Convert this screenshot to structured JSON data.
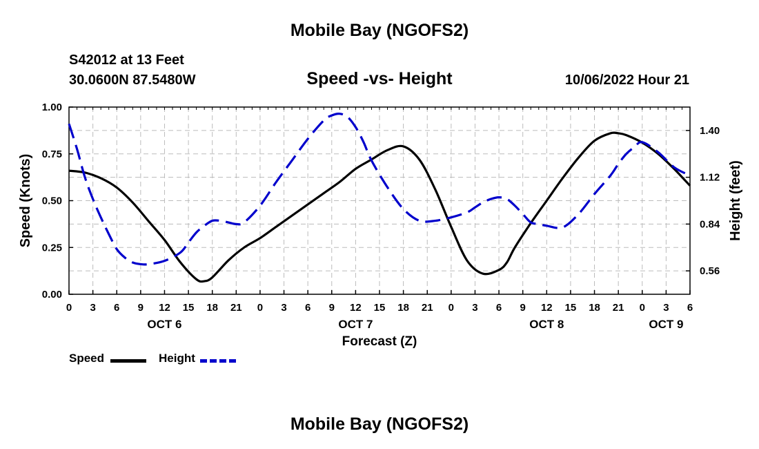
{
  "header": {
    "title": "Mobile Bay (NGOFS2)",
    "station": "S42012 at 13 Feet",
    "position": "30.0600N  87.5480W",
    "subtitle": "Speed -vs- Height",
    "datetime": "10/06/2022 Hour 21"
  },
  "footer": {
    "title": "Mobile Bay (NGOFS2)"
  },
  "legend": {
    "speed_label": "Speed",
    "height_label": "Height"
  },
  "colors": {
    "speed": "#000000",
    "height": "#0000cc",
    "grid": "#bbbbbb"
  },
  "chart_data": {
    "type": "line",
    "title": "Speed -vs- Height",
    "xlabel": "Forecast (Z)",
    "ylabel": "Speed (Knots)",
    "y2label": "Height (feet)",
    "x_range_hours": [
      0,
      78
    ],
    "x_tick_step_hours": 3,
    "x_tick_labels": [
      "0",
      "3",
      "6",
      "9",
      "12",
      "15",
      "18",
      "21",
      "0",
      "3",
      "6",
      "9",
      "12",
      "15",
      "18",
      "21",
      "0",
      "3",
      "6",
      "9",
      "12",
      "15",
      "18",
      "21",
      "0",
      "3",
      "6"
    ],
    "day_labels": [
      {
        "label": "OCT 6",
        "hour": 12
      },
      {
        "label": "OCT 7",
        "hour": 36
      },
      {
        "label": "OCT 8",
        "hour": 60
      },
      {
        "label": "OCT 9",
        "hour": 75
      }
    ],
    "ylim": [
      0,
      1.0
    ],
    "y_ticks": [
      0,
      0.25,
      0.5,
      0.75,
      1.0
    ],
    "y_tick_labels": [
      "0.00",
      "0.25",
      "0.50",
      "0.75",
      "1.00"
    ],
    "y2lim": [
      0.42,
      1.54
    ],
    "y2_ticks": [
      0.56,
      0.84,
      1.12,
      1.4
    ],
    "y2_tick_labels": [
      "0.56",
      "0.84",
      "1.12",
      "1.40"
    ],
    "grid": true,
    "series": [
      {
        "name": "Speed",
        "axis": "left",
        "style": "solid",
        "x": [
          0,
          2,
          4,
          6,
          8,
          10,
          12,
          14,
          16,
          17,
          18,
          20,
          22,
          24,
          26,
          28,
          30,
          32,
          34,
          36,
          38,
          40,
          42,
          44,
          46,
          48,
          50,
          52,
          54,
          55,
          56,
          58,
          60,
          62,
          64,
          66,
          68,
          69,
          70,
          72,
          74,
          76,
          78
        ],
        "values": [
          0.66,
          0.65,
          0.62,
          0.57,
          0.49,
          0.39,
          0.29,
          0.17,
          0.08,
          0.07,
          0.09,
          0.18,
          0.25,
          0.3,
          0.36,
          0.42,
          0.48,
          0.54,
          0.6,
          0.67,
          0.72,
          0.77,
          0.79,
          0.72,
          0.56,
          0.36,
          0.18,
          0.11,
          0.13,
          0.17,
          0.25,
          0.38,
          0.5,
          0.62,
          0.73,
          0.82,
          0.86,
          0.86,
          0.85,
          0.81,
          0.75,
          0.67,
          0.58
        ]
      },
      {
        "name": "Height",
        "axis": "right",
        "style": "dashed",
        "x": [
          0,
          1,
          2,
          3,
          4,
          5,
          6,
          7,
          8,
          9,
          10,
          12,
          14,
          15,
          16,
          17,
          18,
          19,
          20,
          21,
          22,
          24,
          26,
          28,
          30,
          32,
          33,
          34,
          35,
          36,
          37,
          38,
          40,
          42,
          44,
          46,
          48,
          50,
          51,
          52,
          53,
          54,
          55,
          56,
          57,
          58,
          59,
          60,
          62,
          64,
          66,
          68,
          69,
          70,
          71,
          72,
          74,
          76,
          78
        ],
        "values": [
          1.44,
          1.29,
          1.12,
          0.99,
          0.88,
          0.78,
          0.69,
          0.64,
          0.61,
          0.6,
          0.6,
          0.62,
          0.67,
          0.73,
          0.79,
          0.83,
          0.86,
          0.86,
          0.85,
          0.84,
          0.85,
          0.95,
          1.09,
          1.22,
          1.35,
          1.46,
          1.49,
          1.5,
          1.48,
          1.42,
          1.33,
          1.22,
          1.06,
          0.93,
          0.86,
          0.86,
          0.88,
          0.91,
          0.94,
          0.97,
          0.99,
          1.0,
          0.99,
          0.95,
          0.9,
          0.85,
          0.84,
          0.83,
          0.82,
          0.9,
          1.02,
          1.13,
          1.2,
          1.26,
          1.3,
          1.33,
          1.27,
          1.18,
          1.13
        ]
      }
    ]
  }
}
